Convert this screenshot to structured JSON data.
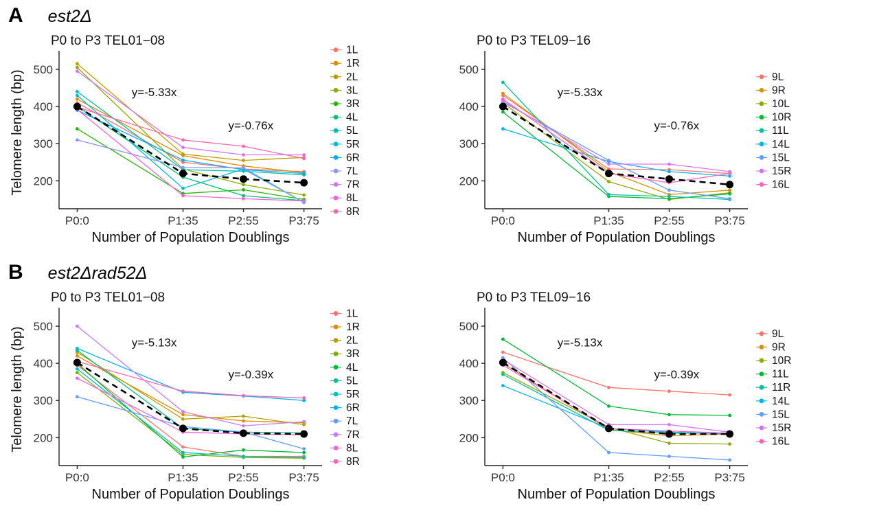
{
  "panels": [
    {
      "label": "A",
      "genotype": "est2Δ",
      "chart_indices": [
        0,
        1
      ]
    },
    {
      "label": "B",
      "genotype": "est2Δrad52Δ",
      "chart_indices": [
        2,
        3
      ]
    }
  ],
  "chart_data": [
    {
      "type": "line",
      "title": "P0 to P3 TEL01−08",
      "xlabel": "Number of Population Doublings",
      "ylabel": "Telomere length (bp)",
      "x": [
        0,
        35,
        55,
        75
      ],
      "x_tick_labels": [
        "P0:0",
        "P1:35",
        "P2:55",
        "P3:75"
      ],
      "y_ticks": [
        200,
        300,
        400,
        500
      ],
      "xlim": [
        -6,
        81
      ],
      "ylim": [
        125,
        535
      ],
      "legend_position": "right",
      "annotations": [
        {
          "text": "y=-5.33x",
          "x": 18,
          "y": 428
        },
        {
          "text": "y=-0.76x",
          "x": 50,
          "y": 338
        }
      ],
      "mean_series": {
        "name": "mean",
        "color": "#000000",
        "dashed": true,
        "values": [
          400,
          220,
          205,
          195
        ]
      },
      "series": [
        {
          "name": "1L",
          "color": "#F8766D",
          "values": [
            410,
            250,
            232,
            225
          ]
        },
        {
          "name": "1R",
          "color": "#E18A00",
          "values": [
            420,
            268,
            240,
            222
          ]
        },
        {
          "name": "2L",
          "color": "#BE9C00",
          "values": [
            515,
            272,
            255,
            263
          ]
        },
        {
          "name": "3L",
          "color": "#8CAB00",
          "values": [
            505,
            232,
            190,
            162
          ]
        },
        {
          "name": "3R",
          "color": "#24B700",
          "values": [
            340,
            166,
            176,
            150
          ]
        },
        {
          "name": "4L",
          "color": "#00BE70",
          "values": [
            400,
            210,
            160,
            147
          ]
        },
        {
          "name": "5L",
          "color": "#00C1AB",
          "values": [
            440,
            230,
            226,
            216
          ]
        },
        {
          "name": "5R",
          "color": "#00BBDA",
          "values": [
            430,
            180,
            232,
            142
          ]
        },
        {
          "name": "6R",
          "color": "#00ACFC",
          "values": [
            390,
            256,
            230,
            220
          ]
        },
        {
          "name": "7L",
          "color": "#8B93FF",
          "values": [
            310,
            236,
            235,
            142
          ]
        },
        {
          "name": "7R",
          "color": "#D575FE",
          "values": [
            495,
            290,
            270,
            270
          ]
        },
        {
          "name": "8L",
          "color": "#F962DD",
          "values": [
            392,
            160,
            152,
            146
          ]
        },
        {
          "name": "8R",
          "color": "#FF65AC",
          "values": [
            398,
            310,
            293,
            260
          ]
        }
      ]
    },
    {
      "type": "line",
      "title": "P0 to P3 TEL09−16",
      "xlabel": "Number of Population Doublings",
      "ylabel": "",
      "x": [
        0,
        35,
        55,
        75
      ],
      "x_tick_labels": [
        "P0:0",
        "P1:35",
        "P2:55",
        "P3:75"
      ],
      "y_ticks": [
        200,
        300,
        400,
        500
      ],
      "xlim": [
        -6,
        81
      ],
      "ylim": [
        125,
        535
      ],
      "legend_position": "right",
      "annotations": [
        {
          "text": "y=-5.33x",
          "x": 18,
          "y": 428
        },
        {
          "text": "y=-0.76x",
          "x": 50,
          "y": 338
        }
      ],
      "mean_series": {
        "name": "mean",
        "color": "#000000",
        "dashed": true,
        "values": [
          400,
          220,
          205,
          190
        ]
      },
      "series": [
        {
          "name": "9L",
          "color": "#F8766D",
          "values": [
            430,
            232,
            230,
            220
          ]
        },
        {
          "name": "9R",
          "color": "#D39200",
          "values": [
            435,
            225,
            163,
            175
          ]
        },
        {
          "name": "10L",
          "color": "#93AA00",
          "values": [
            410,
            198,
            150,
            168
          ]
        },
        {
          "name": "10R",
          "color": "#00BA38",
          "values": [
            385,
            158,
            152,
            165
          ]
        },
        {
          "name": "11L",
          "color": "#00C19F",
          "values": [
            465,
            163,
            158,
            150
          ]
        },
        {
          "name": "14L",
          "color": "#00B9E3",
          "values": [
            340,
            252,
            225,
            213
          ]
        },
        {
          "name": "15L",
          "color": "#619CFF",
          "values": [
            412,
            255,
            175,
            152
          ]
        },
        {
          "name": "15R",
          "color": "#DB72FB",
          "values": [
            415,
            245,
            245,
            225
          ]
        },
        {
          "name": "16L",
          "color": "#FF61C3",
          "values": [
            420,
            220,
            195,
            220
          ]
        }
      ]
    },
    {
      "type": "line",
      "title": "P0 to P3 TEL01−08",
      "xlabel": "Number of Population Doublings",
      "ylabel": "Telomere length (bp)",
      "x": [
        0,
        35,
        55,
        75
      ],
      "x_tick_labels": [
        "P0:0",
        "P1:35",
        "P2:55",
        "P3:75"
      ],
      "y_ticks": [
        200,
        300,
        400,
        500
      ],
      "xlim": [
        -6,
        81
      ],
      "ylim": [
        125,
        535
      ],
      "legend_position": "right",
      "annotations": [
        {
          "text": "y=-5.13x",
          "x": 18,
          "y": 445
        },
        {
          "text": "y=-0.39x",
          "x": 50,
          "y": 360
        }
      ],
      "mean_series": {
        "name": "mean",
        "color": "#000000",
        "dashed": true,
        "values": [
          402,
          225,
          212,
          210
        ]
      },
      "series": [
        {
          "name": "1L",
          "color": "#F8766D",
          "values": [
            395,
            175,
            150,
            150
          ]
        },
        {
          "name": "1R",
          "color": "#DE8C00",
          "values": [
            420,
            262,
            245,
            240
          ]
        },
        {
          "name": "2L",
          "color": "#B79F00",
          "values": [
            430,
            250,
            258,
            235
          ]
        },
        {
          "name": "3R",
          "color": "#7CAE00",
          "values": [
            375,
            155,
            147,
            145
          ]
        },
        {
          "name": "4L",
          "color": "#00BA38",
          "values": [
            400,
            148,
            167,
            160
          ]
        },
        {
          "name": "5L",
          "color": "#00C08B",
          "values": [
            435,
            225,
            215,
            213
          ]
        },
        {
          "name": "5R",
          "color": "#00BFC4",
          "values": [
            385,
            160,
            150,
            147
          ]
        },
        {
          "name": "6R",
          "color": "#00B4F0",
          "values": [
            440,
            322,
            312,
            300
          ]
        },
        {
          "name": "7L",
          "color": "#619CFF",
          "values": [
            310,
            230,
            215,
            170
          ]
        },
        {
          "name": "7R",
          "color": "#C77CFF",
          "values": [
            500,
            270,
            232,
            243
          ]
        },
        {
          "name": "8L",
          "color": "#F564E3",
          "values": [
            360,
            215,
            210,
            208
          ]
        },
        {
          "name": "8R",
          "color": "#FF64B0",
          "values": [
            405,
            325,
            313,
            307
          ]
        }
      ]
    },
    {
      "type": "line",
      "title": "P0 to P3 TEL09−16",
      "xlabel": "Number of Population Doublings",
      "ylabel": "",
      "x": [
        0,
        35,
        55,
        75
      ],
      "x_tick_labels": [
        "P0:0",
        "P1:35",
        "P2:55",
        "P3:75"
      ],
      "y_ticks": [
        200,
        300,
        400,
        500
      ],
      "xlim": [
        -6,
        81
      ],
      "ylim": [
        125,
        535
      ],
      "legend_position": "right",
      "annotations": [
        {
          "text": "y=-5.13x",
          "x": 18,
          "y": 445
        },
        {
          "text": "y=-0.39x",
          "x": 50,
          "y": 360
        }
      ],
      "mean_series": {
        "name": "mean",
        "color": "#000000",
        "dashed": true,
        "values": [
          402,
          225,
          210,
          210
        ]
      },
      "series": [
        {
          "name": "9L",
          "color": "#F8766D",
          "values": [
            430,
            335,
            325,
            315
          ]
        },
        {
          "name": "9R",
          "color": "#D39200",
          "values": [
            400,
            222,
            205,
            210
          ]
        },
        {
          "name": "10R",
          "color": "#93AA00",
          "values": [
            375,
            228,
            185,
            183
          ]
        },
        {
          "name": "11L",
          "color": "#00BA38",
          "values": [
            465,
            285,
            262,
            260
          ]
        },
        {
          "name": "11R",
          "color": "#00C19F",
          "values": [
            370,
            220,
            212,
            212
          ]
        },
        {
          "name": "14L",
          "color": "#00B9E3",
          "values": [
            340,
            225,
            215,
            210
          ]
        },
        {
          "name": "15L",
          "color": "#619CFF",
          "values": [
            415,
            160,
            150,
            140
          ]
        },
        {
          "name": "15R",
          "color": "#DB72FB",
          "values": [
            410,
            235,
            235,
            215
          ]
        },
        {
          "name": "16L",
          "color": "#FF61C3",
          "values": [
            395,
            225,
            218,
            212
          ]
        }
      ]
    }
  ]
}
